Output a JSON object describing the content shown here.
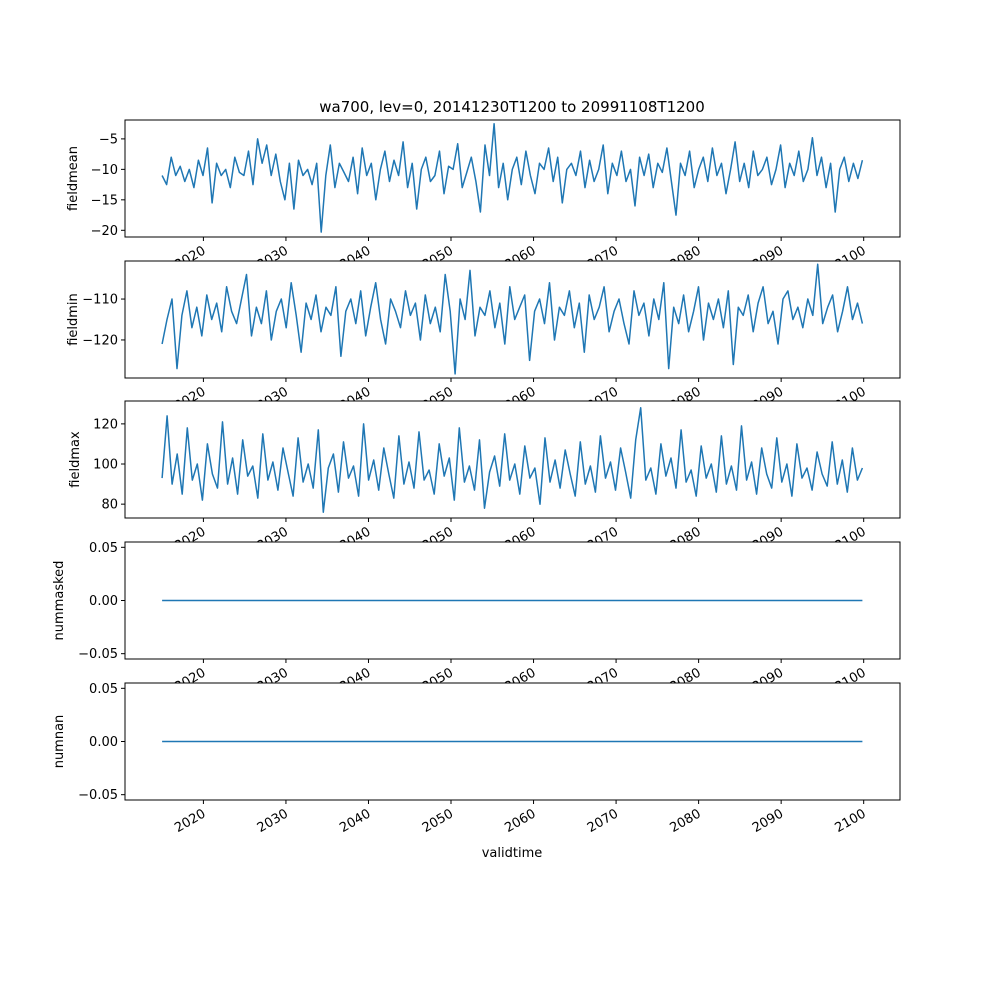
{
  "chart_data": {
    "type": "line",
    "title": "wa700, lev=0, 20141230T1200 to 20991108T1200",
    "xlabel": "validtime",
    "x_range": [
      2014.99,
      2099.85
    ],
    "xlim": [
      2010.5,
      2104.4
    ],
    "x_ticks": [
      "2020",
      "2030",
      "2040",
      "2050",
      "2060",
      "2070",
      "2080",
      "2090",
      "2100"
    ],
    "x_tick_values": [
      2020,
      2030,
      2040,
      2050,
      2060,
      2070,
      2080,
      2090,
      2100
    ],
    "color": "#1f77b4",
    "panels": [
      {
        "ylabel": "fieldmean",
        "ylim": [
          -21.1,
          -1.9
        ],
        "y_ticks": [
          "−5",
          "−10",
          "−15",
          "−20"
        ],
        "y_tick_values": [
          -5,
          -10,
          -15,
          -20
        ],
        "values": [
          -11,
          -12.5,
          -8,
          -11,
          -9.5,
          -12,
          -10,
          -13,
          -8.5,
          -11,
          -6.5,
          -15.5,
          -9,
          -11,
          -10,
          -13,
          -8,
          -10.5,
          -11,
          -7,
          -12.5,
          -5,
          -9,
          -6,
          -11,
          -7.5,
          -12,
          -15,
          -9,
          -16.5,
          -8.5,
          -11,
          -10,
          -12.5,
          -9,
          -20.3,
          -11,
          -6,
          -13,
          -9,
          -10.5,
          -12,
          -8,
          -14,
          -6.5,
          -11,
          -9,
          -15,
          -10,
          -7,
          -12,
          -8.5,
          -11,
          -5.5,
          -13,
          -9,
          -16.5,
          -10,
          -8,
          -12,
          -11,
          -7,
          -14,
          -9.5,
          -10,
          -5.8,
          -13,
          -10.5,
          -8,
          -12,
          -17,
          -6,
          -11,
          -2.5,
          -13,
          -9,
          -15,
          -10,
          -8,
          -12.5,
          -7,
          -11,
          -14,
          -9,
          -10,
          -6.5,
          -12,
          -8,
          -15.5,
          -10,
          -9,
          -11,
          -7,
          -13,
          -8.5,
          -12,
          -10,
          -6,
          -14,
          -9,
          -11,
          -7,
          -12,
          -10,
          -16,
          -8,
          -11,
          -7.5,
          -13,
          -9,
          -10.5,
          -6.5,
          -12,
          -17.5,
          -9,
          -11,
          -7,
          -13,
          -10,
          -8,
          -12,
          -6.5,
          -11,
          -9,
          -14,
          -10,
          -5.5,
          -12,
          -9,
          -13,
          -7,
          -11,
          -10,
          -8,
          -12.5,
          -10,
          -6,
          -13,
          -9,
          -11,
          -7,
          -12,
          -10,
          -4.8,
          -11,
          -8,
          -13,
          -9,
          -17,
          -10,
          -8,
          -12,
          -9,
          -11.5,
          -8.5
        ]
      },
      {
        "ylabel": "fieldmin",
        "ylim": [
          -129.3,
          -100.7
        ],
        "y_ticks": [
          "−110",
          "−120"
        ],
        "y_tick_values": [
          -110,
          -120
        ],
        "values": [
          -121,
          -115,
          -110,
          -127,
          -114,
          -108,
          -117,
          -112,
          -119,
          -109,
          -115,
          -111,
          -118,
          -107,
          -113,
          -116,
          -110,
          -104,
          -119,
          -112,
          -116,
          -108,
          -120,
          -113,
          -110,
          -117,
          -106,
          -114,
          -123,
          -111,
          -115,
          -109,
          -118,
          -112,
          -114,
          -107,
          -124,
          -113,
          -110,
          -116,
          -108,
          -119,
          -112,
          -106,
          -115,
          -121,
          -110,
          -113,
          -117,
          -108,
          -114,
          -111,
          -120,
          -109,
          -116,
          -112,
          -118,
          -104,
          -113,
          -128.3,
          -110,
          -115,
          -103,
          -119,
          -112,
          -114,
          -108,
          -117,
          -111,
          -121,
          -107,
          -115,
          -112,
          -109,
          -125,
          -113,
          -110,
          -116,
          -106,
          -120,
          -112,
          -114,
          -108,
          -117,
          -111,
          -123,
          -109,
          -115,
          -112,
          -107,
          -118,
          -113,
          -110,
          -116,
          -121,
          -108,
          -114,
          -111,
          -119,
          -110,
          -115,
          -106,
          -127,
          -112,
          -116,
          -109,
          -118,
          -113,
          -107,
          -120,
          -111,
          -115,
          -110,
          -117,
          -108,
          -126,
          -112,
          -114,
          -109,
          -118,
          -111,
          -107,
          -116,
          -113,
          -121,
          -110,
          -108,
          -115,
          -112,
          -117,
          -110,
          -114,
          -101.5,
          -116,
          -112,
          -109,
          -118,
          -113,
          -107,
          -115,
          -111,
          -116
        ]
      },
      {
        "ylabel": "fieldmax",
        "ylim": [
          73.1,
          131.4
        ],
        "y_ticks": [
          "120",
          "100",
          "80"
        ],
        "y_tick_values": [
          120,
          100,
          80
        ],
        "values": [
          93,
          124,
          90,
          105,
          85,
          118,
          92,
          100,
          82,
          110,
          95,
          88,
          121,
          90,
          103,
          85,
          112,
          94,
          99,
          83,
          115,
          92,
          101,
          87,
          108,
          96,
          84,
          113,
          91,
          100,
          88,
          117,
          76,
          98,
          105,
          86,
          111,
          93,
          99,
          84,
          120,
          92,
          102,
          87,
          108,
          95,
          83,
          114,
          90,
          101,
          88,
          116,
          92,
          97,
          85,
          110,
          94,
          103,
          82,
          118,
          91,
          99,
          87,
          112,
          78,
          96,
          104,
          89,
          115,
          92,
          100,
          85,
          109,
          93,
          98,
          80,
          113,
          91,
          102,
          88,
          107,
          95,
          84,
          111,
          90,
          99,
          86,
          114,
          93,
          101,
          87,
          108,
          96,
          83,
          112,
          128,
          92,
          98,
          85,
          110,
          94,
          103,
          88,
          117,
          91,
          97,
          84,
          109,
          93,
          100,
          86,
          114,
          90,
          99,
          87,
          119,
          92,
          101,
          85,
          108,
          95,
          88,
          113,
          91,
          100,
          84,
          110,
          93,
          98,
          87,
          106,
          95,
          89,
          111,
          90,
          102,
          86,
          108,
          92,
          98
        ]
      },
      {
        "ylabel": "nummasked",
        "ylim": [
          -0.055,
          0.055
        ],
        "y_ticks": [
          "0.05",
          "0.00",
          "−0.05"
        ],
        "y_tick_values": [
          0.05,
          0,
          -0.05
        ],
        "values": [
          0,
          0
        ]
      },
      {
        "ylabel": "numnan",
        "ylim": [
          -0.055,
          0.055
        ],
        "y_ticks": [
          "0.05",
          "0.00",
          "−0.05"
        ],
        "y_tick_values": [
          0.05,
          0,
          -0.05
        ],
        "values": [
          0,
          0
        ]
      }
    ]
  }
}
